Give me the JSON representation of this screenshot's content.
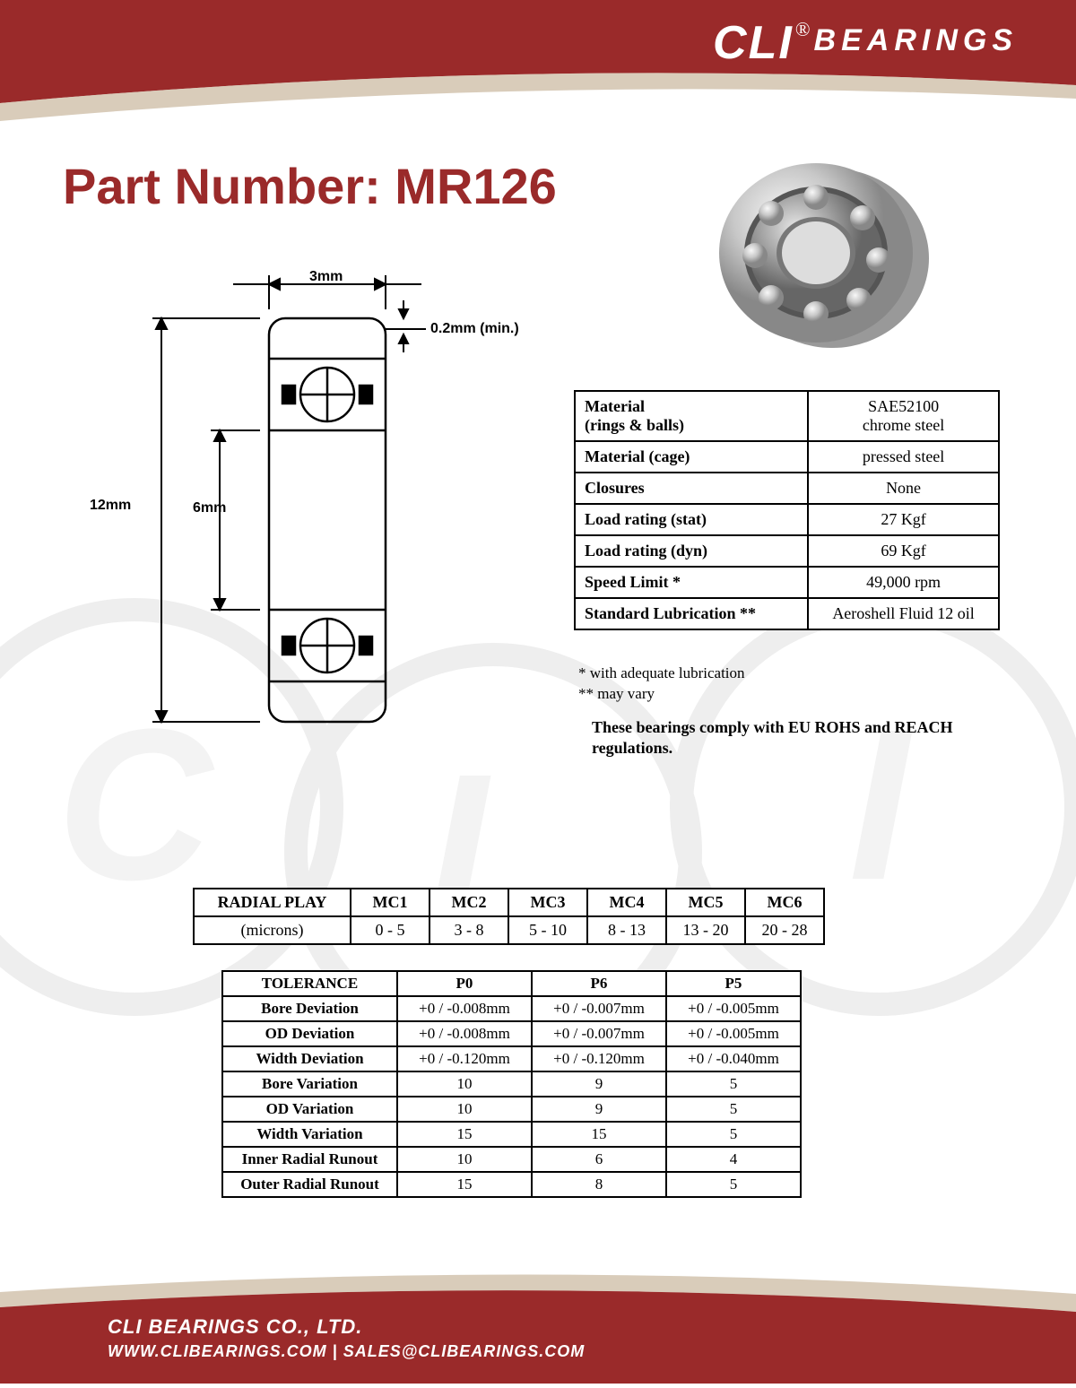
{
  "brand": {
    "logo_cli": "CLI",
    "logo_reg": "®",
    "logo_bearings": "BEARINGS",
    "primary_color": "#9a2a2a",
    "accent_color": "#ffffff"
  },
  "title": "Part Number: MR126",
  "diagram": {
    "width_label": "3mm",
    "chamfer_label": "0.2mm (min.)",
    "outer_dia_label": "12mm",
    "bore_label": "6mm"
  },
  "specs": {
    "rows": [
      {
        "label": "Material\n(rings & balls)",
        "value": "SAE52100\nchrome steel"
      },
      {
        "label": "Material (cage)",
        "value": "pressed steel"
      },
      {
        "label": "Closures",
        "value": "None"
      },
      {
        "label": "Load rating (stat)",
        "value": "27 Kgf"
      },
      {
        "label": "Load rating (dyn)",
        "value": "69 Kgf"
      },
      {
        "label": "Speed Limit *",
        "value": "49,000 rpm"
      },
      {
        "label": "Standard Lubrication **",
        "value": "Aeroshell Fluid 12 oil"
      }
    ],
    "note1": "  * with adequate lubrication",
    "note2": "** may vary",
    "compliance": "These bearings comply with EU ROHS and REACH  regulations."
  },
  "radial": {
    "header": [
      "RADIAL PLAY",
      "MC1",
      "MC2",
      "MC3",
      "MC4",
      "MC5",
      "MC6"
    ],
    "row_label": "(microns)",
    "values": [
      "0 - 5",
      "3 - 8",
      "5 - 10",
      "8 - 13",
      "13 - 20",
      "20 - 28"
    ]
  },
  "tolerance": {
    "header": [
      "TOLERANCE",
      "P0",
      "P6",
      "P5"
    ],
    "rows": [
      [
        "Bore Deviation",
        "+0 / -0.008mm",
        "+0 / -0.007mm",
        "+0 / -0.005mm"
      ],
      [
        "OD Deviation",
        "+0 / -0.008mm",
        "+0 / -0.007mm",
        "+0 / -0.005mm"
      ],
      [
        "Width Deviation",
        "+0 / -0.120mm",
        "+0 / -0.120mm",
        "+0 / -0.040mm"
      ],
      [
        "Bore Variation",
        "10",
        "9",
        "5"
      ],
      [
        "OD Variation",
        "10",
        "9",
        "5"
      ],
      [
        "Width Variation",
        "15",
        "15",
        "5"
      ],
      [
        "Inner Radial Runout",
        "10",
        "6",
        "4"
      ],
      [
        "Outer Radial Runout",
        "15",
        "8",
        "5"
      ]
    ]
  },
  "footer": {
    "company": "CLI BEARINGS CO., LTD.",
    "website": "WWW.CLIBEARINGS.COM",
    "sep": "  |  ",
    "email": "SALES@CLIBEARINGS.COM"
  }
}
